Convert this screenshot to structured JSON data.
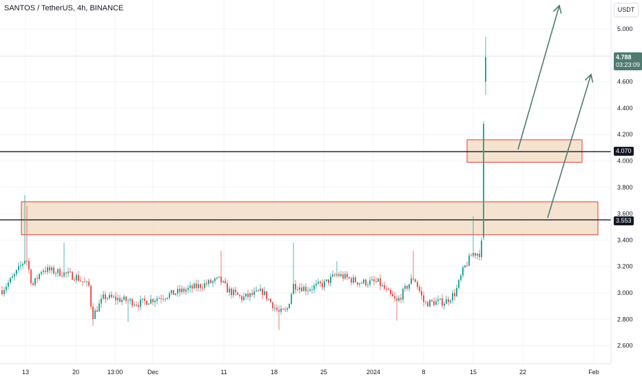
{
  "header": {
    "title": "SANTOS / TetherUS, 4h, BINANCE",
    "unit": "USDT"
  },
  "price_labels": {
    "last_price": "4.788",
    "countdown": "03:23:09",
    "level_upper": "4.070",
    "level_lower": "3.553"
  },
  "colors": {
    "up": "#26a69a",
    "down": "#ef5350",
    "zone_fill": "#f3dcc4",
    "zone_border": "#e53935",
    "arrow": "#4e7a72",
    "level_line": "#131722",
    "last_price_bg": "#4e7a72"
  },
  "chart_data": {
    "type": "candlestick",
    "y_ticks": [
      "5.000",
      "4.800",
      "4.600",
      "4.400",
      "4.200",
      "4.000",
      "3.800",
      "3.600",
      "3.400",
      "3.200",
      "3.000",
      "2.800",
      "2.600"
    ],
    "y_tick_values": [
      5.0,
      4.8,
      4.6,
      4.4,
      4.2,
      4.0,
      3.8,
      3.6,
      3.4,
      3.2,
      3.0,
      2.8,
      2.6
    ],
    "x_ticks": [
      "13",
      "20",
      "13:00",
      "Dec",
      "11",
      "18",
      "25",
      "2024",
      "8",
      "15",
      "22",
      "Feb"
    ],
    "ylim": [
      2.48,
      5.22
    ],
    "horizontal_levels": [
      4.07,
      3.553
    ],
    "last_price": 4.788,
    "zones": [
      {
        "name": "upper-zone",
        "from": 3.99,
        "to": 4.16
      },
      {
        "name": "lower-zone",
        "from": 3.44,
        "to": 3.69
      }
    ],
    "candles_summary": {
      "start": 3.05,
      "early_spike_high": 3.74,
      "range_low": 2.71,
      "breakout_high": 4.94,
      "current": 4.788
    }
  }
}
